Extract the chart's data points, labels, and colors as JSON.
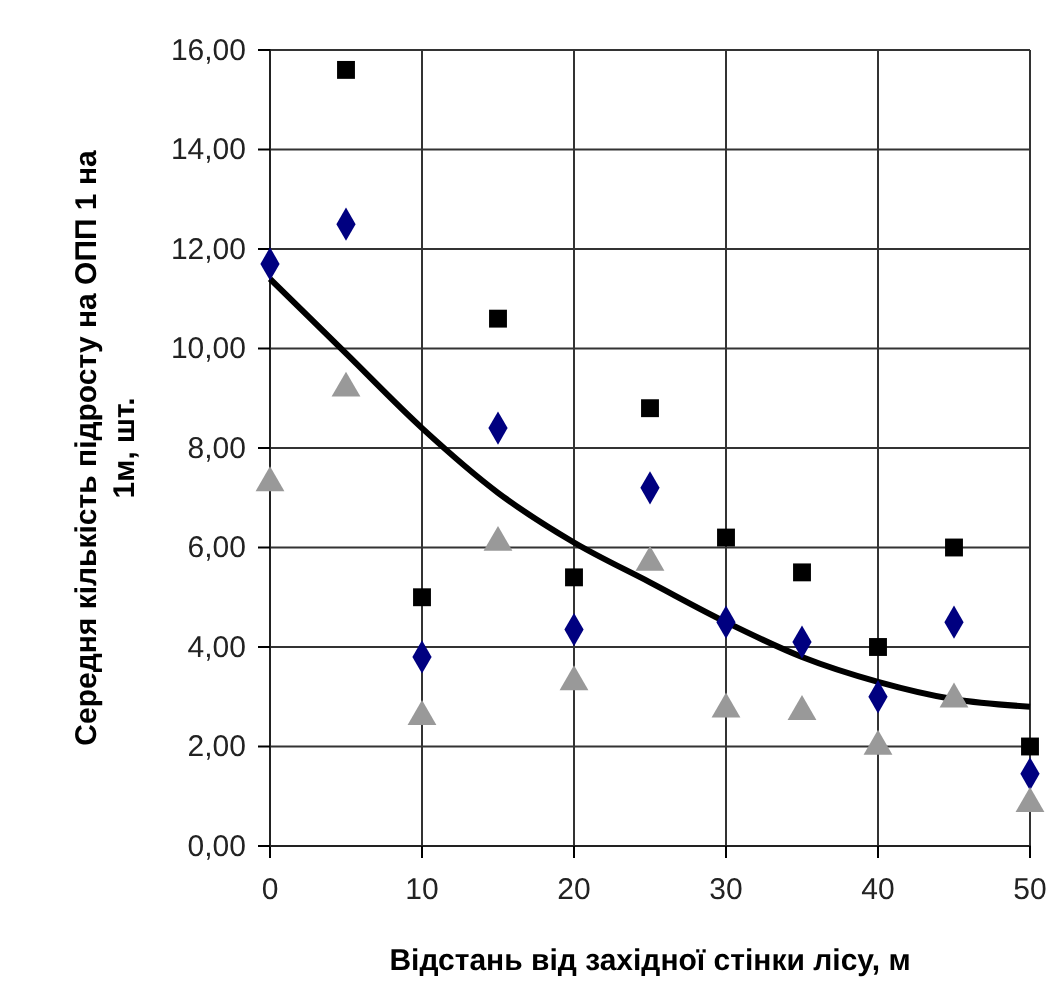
{
  "chart_data": {
    "type": "scatter",
    "xlabel": "Відстань від західної стінки лісу, м",
    "ylabel": "Середня кількість підросту на ОПП 1 на 1м, шт.",
    "x": [
      0,
      5,
      10,
      15,
      20,
      25,
      30,
      35,
      40,
      45,
      50
    ],
    "series": [
      {
        "color": "#000000",
        "marker": "square",
        "x": [
          5,
          10,
          15,
          20,
          25,
          30,
          35,
          40,
          45,
          50
        ],
        "values": [
          15.6,
          5.0,
          10.6,
          5.4,
          8.8,
          6.2,
          5.5,
          4.0,
          6.0,
          2.0
        ]
      },
      {
        "color": "#000080",
        "marker": "diamond",
        "values": [
          11.7,
          12.5,
          3.8,
          8.4,
          4.35,
          7.2,
          4.5,
          4.1,
          3.0,
          4.5,
          1.45
        ]
      },
      {
        "color": "#999999",
        "marker": "triangle",
        "values": [
          7.3,
          9.2,
          2.6,
          6.1,
          3.3,
          5.7,
          2.75,
          2.7,
          2.0,
          2.95,
          0.85
        ]
      },
      {
        "type": "line",
        "color": "#000000",
        "marker": "none",
        "line_style": "solid",
        "values": [
          11.4,
          9.9,
          8.4,
          7.1,
          6.1,
          5.3,
          4.5,
          3.8,
          3.3,
          2.95,
          2.8
        ]
      }
    ],
    "xlim": [
      0,
      50
    ],
    "xticks": [
      0,
      10,
      20,
      30,
      40,
      50
    ],
    "ylim": [
      0,
      16
    ],
    "yticks": [
      {
        "value": 0,
        "label": "0,00"
      },
      {
        "value": 2,
        "label": "2,00"
      },
      {
        "value": 4,
        "label": "4,00"
      },
      {
        "value": 6,
        "label": "6,00"
      },
      {
        "value": 8,
        "label": "8,00"
      },
      {
        "value": 10,
        "label": "10,00"
      },
      {
        "value": 12,
        "label": "12,00"
      },
      {
        "value": 14,
        "label": "14,00"
      },
      {
        "value": 16,
        "label": "16,00"
      }
    ],
    "grid": true
  }
}
